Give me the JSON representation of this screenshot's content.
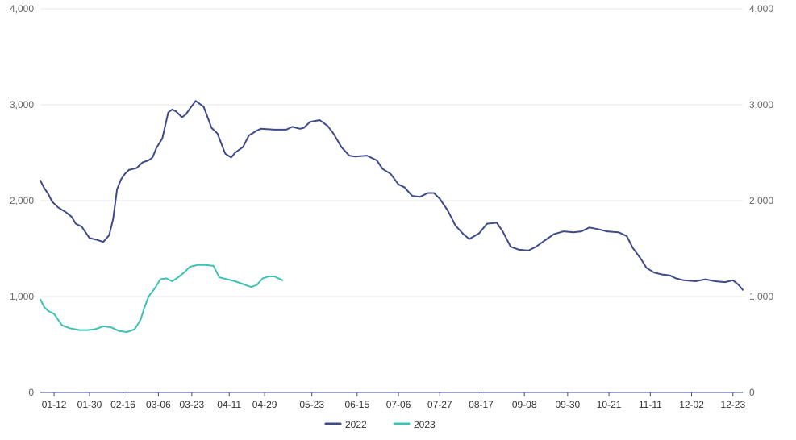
{
  "chart_data": {
    "type": "line",
    "title": "",
    "xlabel": "",
    "ylabel": "",
    "ylim": [
      0,
      4000
    ],
    "y_ticks": [
      0,
      1000,
      2000,
      3000,
      4000
    ],
    "y_tick_labels": [
      "0",
      "1,000",
      "2,000",
      "3,000",
      "4,000"
    ],
    "y_axis_right_mirrored": true,
    "x_range": [
      "2022-01-05",
      "2022-12-28"
    ],
    "x_ticks": [
      "2022-01-12",
      "2022-01-30",
      "2022-02-16",
      "2022-03-06",
      "2022-03-23",
      "2022-04-11",
      "2022-04-29",
      "2022-05-23",
      "2022-06-15",
      "2022-07-06",
      "2022-07-27",
      "2022-08-17",
      "2022-09-08",
      "2022-09-30",
      "2022-10-21",
      "2022-11-11",
      "2022-12-02",
      "2022-12-23"
    ],
    "x_tick_labels": [
      "01-12",
      "01-30",
      "02-16",
      "03-06",
      "03-23",
      "04-11",
      "04-29",
      "05-23",
      "06-15",
      "07-06",
      "07-27",
      "08-17",
      "09-08",
      "09-30",
      "10-21",
      "11-11",
      "12-02",
      "12-23"
    ],
    "grid": true,
    "legend_position": "bottom-center",
    "series": [
      {
        "name": "2022",
        "color": "#3f4a8a",
        "points": [
          [
            "2022-01-05",
            2210
          ],
          [
            "2022-01-07",
            2130
          ],
          [
            "2022-01-09",
            2070
          ],
          [
            "2022-01-11",
            1990
          ],
          [
            "2022-01-14",
            1930
          ],
          [
            "2022-01-18",
            1880
          ],
          [
            "2022-01-21",
            1830
          ],
          [
            "2022-01-23",
            1760
          ],
          [
            "2022-01-26",
            1730
          ],
          [
            "2022-01-30",
            1610
          ],
          [
            "2022-02-03",
            1590
          ],
          [
            "2022-02-06",
            1570
          ],
          [
            "2022-02-09",
            1640
          ],
          [
            "2022-02-11",
            1810
          ],
          [
            "2022-02-13",
            2120
          ],
          [
            "2022-02-15",
            2220
          ],
          [
            "2022-02-17",
            2280
          ],
          [
            "2022-02-19",
            2320
          ],
          [
            "2022-02-23",
            2340
          ],
          [
            "2022-02-26",
            2400
          ],
          [
            "2022-03-01",
            2420
          ],
          [
            "2022-03-03",
            2450
          ],
          [
            "2022-03-05",
            2550
          ],
          [
            "2022-03-08",
            2650
          ],
          [
            "2022-03-11",
            2920
          ],
          [
            "2022-03-13",
            2950
          ],
          [
            "2022-03-15",
            2930
          ],
          [
            "2022-03-18",
            2870
          ],
          [
            "2022-03-20",
            2900
          ],
          [
            "2022-03-22",
            2960
          ],
          [
            "2022-03-25",
            3040
          ],
          [
            "2022-03-29",
            2980
          ],
          [
            "2022-04-02",
            2760
          ],
          [
            "2022-04-05",
            2700
          ],
          [
            "2022-04-09",
            2490
          ],
          [
            "2022-04-12",
            2450
          ],
          [
            "2022-04-14",
            2500
          ],
          [
            "2022-04-18",
            2560
          ],
          [
            "2022-04-21",
            2680
          ],
          [
            "2022-04-25",
            2730
          ],
          [
            "2022-04-27",
            2750
          ],
          [
            "2022-05-04",
            2740
          ],
          [
            "2022-05-10",
            2740
          ],
          [
            "2022-05-13",
            2770
          ],
          [
            "2022-05-17",
            2750
          ],
          [
            "2022-05-19",
            2760
          ],
          [
            "2022-05-22",
            2820
          ],
          [
            "2022-05-27",
            2840
          ],
          [
            "2022-05-31",
            2780
          ],
          [
            "2022-06-03",
            2700
          ],
          [
            "2022-06-07",
            2560
          ],
          [
            "2022-06-11",
            2470
          ],
          [
            "2022-06-14",
            2460
          ],
          [
            "2022-06-20",
            2470
          ],
          [
            "2022-06-25",
            2420
          ],
          [
            "2022-06-28",
            2330
          ],
          [
            "2022-07-02",
            2280
          ],
          [
            "2022-07-06",
            2170
          ],
          [
            "2022-07-09",
            2140
          ],
          [
            "2022-07-13",
            2050
          ],
          [
            "2022-07-17",
            2040
          ],
          [
            "2022-07-21",
            2080
          ],
          [
            "2022-07-24",
            2080
          ],
          [
            "2022-07-27",
            2020
          ],
          [
            "2022-07-31",
            1900
          ],
          [
            "2022-08-04",
            1740
          ],
          [
            "2022-08-08",
            1650
          ],
          [
            "2022-08-11",
            1600
          ],
          [
            "2022-08-16",
            1660
          ],
          [
            "2022-08-20",
            1760
          ],
          [
            "2022-08-25",
            1770
          ],
          [
            "2022-08-28",
            1680
          ],
          [
            "2022-09-01",
            1520
          ],
          [
            "2022-09-05",
            1490
          ],
          [
            "2022-09-10",
            1480
          ],
          [
            "2022-09-14",
            1520
          ],
          [
            "2022-09-18",
            1580
          ],
          [
            "2022-09-23",
            1650
          ],
          [
            "2022-09-28",
            1680
          ],
          [
            "2022-10-03",
            1670
          ],
          [
            "2022-10-07",
            1680
          ],
          [
            "2022-10-11",
            1720
          ],
          [
            "2022-10-16",
            1700
          ],
          [
            "2022-10-20",
            1680
          ],
          [
            "2022-10-26",
            1670
          ],
          [
            "2022-10-30",
            1630
          ],
          [
            "2022-11-02",
            1510
          ],
          [
            "2022-11-06",
            1400
          ],
          [
            "2022-11-09",
            1300
          ],
          [
            "2022-11-13",
            1250
          ],
          [
            "2022-11-17",
            1230
          ],
          [
            "2022-11-21",
            1220
          ],
          [
            "2022-11-24",
            1190
          ],
          [
            "2022-11-28",
            1170
          ],
          [
            "2022-12-04",
            1160
          ],
          [
            "2022-12-09",
            1180
          ],
          [
            "2022-12-14",
            1160
          ],
          [
            "2022-12-19",
            1150
          ],
          [
            "2022-12-23",
            1170
          ],
          [
            "2022-12-26",
            1120
          ],
          [
            "2022-12-28",
            1070
          ]
        ]
      },
      {
        "name": "2023",
        "color": "#3ec1b5",
        "points": [
          [
            "2022-01-05",
            970
          ],
          [
            "2022-01-07",
            890
          ],
          [
            "2022-01-09",
            850
          ],
          [
            "2022-01-12",
            820
          ],
          [
            "2022-01-16",
            700
          ],
          [
            "2022-01-20",
            670
          ],
          [
            "2022-01-25",
            650
          ],
          [
            "2022-01-29",
            650
          ],
          [
            "2022-02-02",
            660
          ],
          [
            "2022-02-06",
            690
          ],
          [
            "2022-02-10",
            680
          ],
          [
            "2022-02-14",
            640
          ],
          [
            "2022-02-18",
            630
          ],
          [
            "2022-02-22",
            660
          ],
          [
            "2022-02-25",
            760
          ],
          [
            "2022-02-27",
            890
          ],
          [
            "2022-03-01",
            1000
          ],
          [
            "2022-03-04",
            1080
          ],
          [
            "2022-03-07",
            1180
          ],
          [
            "2022-03-10",
            1190
          ],
          [
            "2022-03-13",
            1160
          ],
          [
            "2022-03-16",
            1200
          ],
          [
            "2022-03-19",
            1250
          ],
          [
            "2022-03-22",
            1310
          ],
          [
            "2022-03-26",
            1330
          ],
          [
            "2022-03-30",
            1330
          ],
          [
            "2022-04-03",
            1320
          ],
          [
            "2022-04-06",
            1200
          ],
          [
            "2022-04-10",
            1180
          ],
          [
            "2022-04-14",
            1160
          ],
          [
            "2022-04-18",
            1130
          ],
          [
            "2022-04-22",
            1100
          ],
          [
            "2022-04-25",
            1120
          ],
          [
            "2022-04-28",
            1190
          ],
          [
            "2022-05-01",
            1210
          ],
          [
            "2022-05-04",
            1210
          ],
          [
            "2022-05-08",
            1170
          ]
        ]
      }
    ]
  }
}
